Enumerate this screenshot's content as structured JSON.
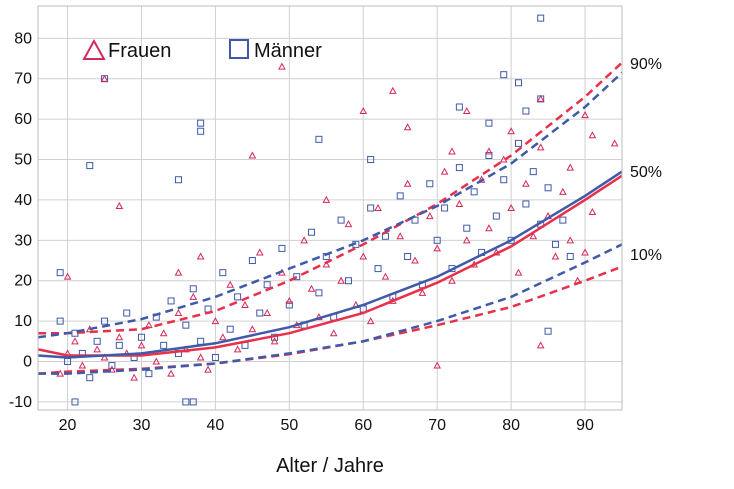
{
  "chart_data": {
    "type": "scatter",
    "xlabel": "Alter / Jahre",
    "ylabel": "",
    "xlim": [
      16,
      95
    ],
    "ylim": [
      -12,
      88
    ],
    "xticks": [
      20,
      30,
      40,
      50,
      60,
      70,
      80,
      90
    ],
    "yticks": [
      -10,
      0,
      10,
      20,
      30,
      40,
      50,
      60,
      70,
      80
    ],
    "grid": true,
    "legend_position": "top-left",
    "colors": {
      "frauen": "#e8304a",
      "maenner": "#3f5aa8",
      "frauen_marker": "#d42a5a"
    },
    "legend": [
      {
        "label": "Frauen",
        "marker": "triangle"
      },
      {
        "label": "Männer",
        "marker": "square"
      }
    ],
    "percentile_labels": [
      "90%",
      "50%",
      "10%"
    ],
    "curves": [
      {
        "series": "Frauen",
        "percentile": "90%",
        "style": "dashed",
        "x": [
          16,
          20,
          30,
          40,
          50,
          60,
          70,
          80,
          90,
          95
        ],
        "y": [
          7.0,
          7.0,
          8.0,
          12.5,
          20.0,
          29.0,
          39.0,
          51.0,
          65.5,
          74.0
        ]
      },
      {
        "series": "Frauen",
        "percentile": "50%",
        "style": "solid",
        "x": [
          16,
          20,
          30,
          40,
          50,
          60,
          70,
          80,
          90,
          95
        ],
        "y": [
          3.0,
          1.5,
          1.5,
          3.5,
          7.0,
          12.0,
          19.5,
          28.5,
          40.0,
          46.0
        ]
      },
      {
        "series": "Frauen",
        "percentile": "10%",
        "style": "dashed",
        "x": [
          16,
          20,
          30,
          40,
          50,
          60,
          70,
          80,
          90,
          95
        ],
        "y": [
          -3.0,
          -2.5,
          -1.8,
          -0.5,
          1.8,
          5.0,
          9.0,
          13.5,
          20.0,
          23.5
        ]
      },
      {
        "series": "Männer",
        "percentile": "90%",
        "style": "dashed",
        "x": [
          16,
          20,
          30,
          40,
          50,
          60,
          70,
          80,
          90,
          95
        ],
        "y": [
          6.0,
          7.0,
          10.5,
          16.0,
          23.0,
          30.0,
          38.5,
          49.0,
          63.0,
          71.5
        ]
      },
      {
        "series": "Männer",
        "percentile": "50%",
        "style": "solid",
        "x": [
          16,
          20,
          30,
          40,
          50,
          60,
          70,
          80,
          90,
          95
        ],
        "y": [
          1.5,
          1.0,
          2.0,
          4.5,
          8.5,
          14.0,
          21.0,
          30.0,
          41.0,
          47.0
        ]
      },
      {
        "series": "Männer",
        "percentile": "10%",
        "style": "dashed",
        "x": [
          16,
          20,
          30,
          40,
          50,
          60,
          70,
          80,
          90,
          95
        ],
        "y": [
          -3.0,
          -3.0,
          -2.0,
          -0.5,
          2.0,
          5.0,
          10.0,
          16.0,
          24.5,
          29.0
        ]
      }
    ],
    "points": {
      "Frauen": [
        [
          20,
          21
        ],
        [
          25,
          70
        ],
        [
          27,
          38.5
        ],
        [
          35,
          22
        ],
        [
          38,
          26
        ],
        [
          45,
          51
        ],
        [
          49,
          73
        ],
        [
          55,
          40
        ],
        [
          60,
          62
        ],
        [
          64,
          67
        ],
        [
          66,
          58
        ],
        [
          72,
          52
        ],
        [
          74,
          62
        ],
        [
          77,
          52
        ],
        [
          80,
          57
        ],
        [
          84,
          65
        ],
        [
          88,
          48
        ],
        [
          90,
          61
        ],
        [
          91,
          56
        ],
        [
          94,
          54
        ],
        [
          84,
          4
        ],
        [
          91,
          37
        ],
        [
          70,
          -1
        ],
        [
          19,
          -3
        ],
        [
          20,
          2
        ],
        [
          21,
          5
        ],
        [
          22,
          -1
        ],
        [
          23,
          8
        ],
        [
          24,
          3
        ],
        [
          25,
          1
        ],
        [
          26,
          -2
        ],
        [
          27,
          6
        ],
        [
          28,
          2
        ],
        [
          29,
          -4
        ],
        [
          30,
          4
        ],
        [
          31,
          9
        ],
        [
          32,
          0
        ],
        [
          33,
          7
        ],
        [
          34,
          -3
        ],
        [
          35,
          12
        ],
        [
          36,
          3
        ],
        [
          37,
          16
        ],
        [
          38,
          1
        ],
        [
          39,
          -2
        ],
        [
          40,
          10
        ],
        [
          41,
          6
        ],
        [
          42,
          19
        ],
        [
          43,
          3
        ],
        [
          44,
          14
        ],
        [
          45,
          8
        ],
        [
          46,
          27
        ],
        [
          47,
          12
        ],
        [
          48,
          5
        ],
        [
          49,
          22
        ],
        [
          50,
          15
        ],
        [
          51,
          9
        ],
        [
          52,
          30
        ],
        [
          53,
          18
        ],
        [
          54,
          11
        ],
        [
          55,
          24
        ],
        [
          56,
          7
        ],
        [
          57,
          20
        ],
        [
          58,
          34
        ],
        [
          59,
          14
        ],
        [
          60,
          26
        ],
        [
          61,
          10
        ],
        [
          62,
          38
        ],
        [
          63,
          21
        ],
        [
          64,
          15
        ],
        [
          65,
          31
        ],
        [
          66,
          44
        ],
        [
          67,
          25
        ],
        [
          68,
          17
        ],
        [
          69,
          36
        ],
        [
          70,
          28
        ],
        [
          71,
          47
        ],
        [
          72,
          20
        ],
        [
          73,
          39
        ],
        [
          74,
          30
        ],
        [
          75,
          24
        ],
        [
          76,
          45
        ],
        [
          77,
          33
        ],
        [
          78,
          27
        ],
        [
          79,
          50
        ],
        [
          80,
          38
        ],
        [
          81,
          22
        ],
        [
          82,
          44
        ],
        [
          83,
          31
        ],
        [
          84,
          53
        ],
        [
          85,
          36
        ],
        [
          86,
          26
        ],
        [
          87,
          42
        ],
        [
          88,
          30
        ],
        [
          89,
          20
        ],
        [
          90,
          27
        ]
      ],
      "Männer": [
        [
          19,
          22
        ],
        [
          21,
          -10
        ],
        [
          23,
          48.5
        ],
        [
          25,
          70
        ],
        [
          35,
          45
        ],
        [
          36,
          -10
        ],
        [
          37,
          -10
        ],
        [
          38,
          57
        ],
        [
          38,
          59
        ],
        [
          54,
          55
        ],
        [
          61,
          50
        ],
        [
          73,
          63
        ],
        [
          77,
          59
        ],
        [
          79,
          71
        ],
        [
          81,
          69
        ],
        [
          82,
          62
        ],
        [
          84,
          65
        ],
        [
          84,
          85
        ],
        [
          85,
          7.5
        ],
        [
          19,
          10
        ],
        [
          20,
          0
        ],
        [
          21,
          7
        ],
        [
          22,
          2
        ],
        [
          23,
          -4
        ],
        [
          24,
          5
        ],
        [
          25,
          10
        ],
        [
          26,
          -1
        ],
        [
          27,
          4
        ],
        [
          28,
          12
        ],
        [
          29,
          1
        ],
        [
          30,
          6
        ],
        [
          31,
          -3
        ],
        [
          32,
          11
        ],
        [
          33,
          4
        ],
        [
          34,
          15
        ],
        [
          35,
          2
        ],
        [
          36,
          9
        ],
        [
          37,
          18
        ],
        [
          38,
          5
        ],
        [
          39,
          13
        ],
        [
          40,
          1
        ],
        [
          41,
          22
        ],
        [
          42,
          8
        ],
        [
          43,
          16
        ],
        [
          44,
          4
        ],
        [
          45,
          25
        ],
        [
          46,
          12
        ],
        [
          47,
          19
        ],
        [
          48,
          6
        ],
        [
          49,
          28
        ],
        [
          50,
          14
        ],
        [
          51,
          21
        ],
        [
          52,
          9
        ],
        [
          53,
          32
        ],
        [
          54,
          17
        ],
        [
          55,
          26
        ],
        [
          56,
          11
        ],
        [
          57,
          35
        ],
        [
          58,
          20
        ],
        [
          59,
          29
        ],
        [
          60,
          13
        ],
        [
          61,
          38
        ],
        [
          62,
          23
        ],
        [
          63,
          31
        ],
        [
          64,
          16
        ],
        [
          65,
          41
        ],
        [
          66,
          26
        ],
        [
          67,
          35
        ],
        [
          68,
          19
        ],
        [
          69,
          44
        ],
        [
          70,
          30
        ],
        [
          71,
          38
        ],
        [
          72,
          23
        ],
        [
          73,
          48
        ],
        [
          74,
          33
        ],
        [
          75,
          42
        ],
        [
          76,
          27
        ],
        [
          77,
          51
        ],
        [
          78,
          36
        ],
        [
          79,
          45
        ],
        [
          80,
          30
        ],
        [
          81,
          54
        ],
        [
          82,
          39
        ],
        [
          83,
          47
        ],
        [
          84,
          34
        ],
        [
          85,
          43
        ],
        [
          86,
          29
        ],
        [
          87,
          35
        ],
        [
          88,
          26
        ]
      ]
    }
  }
}
